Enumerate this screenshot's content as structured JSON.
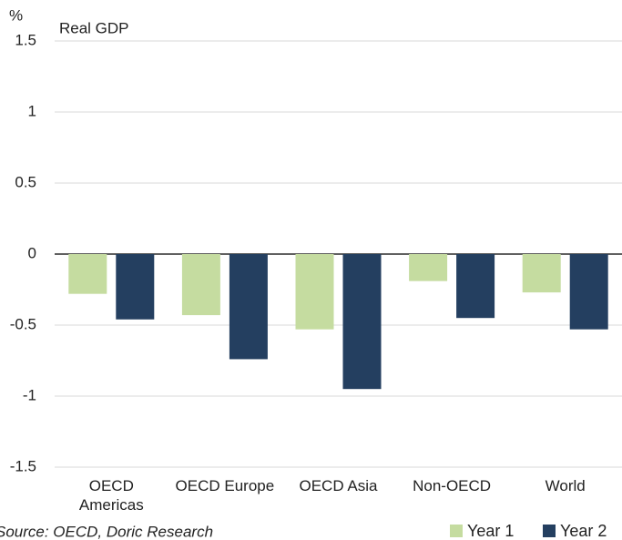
{
  "chart_data": {
    "type": "bar",
    "title": "Real GDP",
    "y_label": "%",
    "categories": [
      "OECD Americas",
      "OECD Europe",
      "OECD Asia",
      "Non-OECD",
      "World"
    ],
    "series": [
      {
        "name": "Year 1",
        "color": "#c5dca0",
        "values": [
          -0.28,
          -0.43,
          -0.53,
          -0.19,
          -0.27
        ]
      },
      {
        "name": "Year 2",
        "color": "#243f60",
        "values": [
          -0.46,
          -0.74,
          -0.95,
          -0.45,
          -0.53
        ]
      }
    ],
    "ylim": [
      -1.5,
      1.5
    ],
    "yticks": [
      -1.5,
      -1,
      -0.5,
      0,
      0.5,
      1,
      1.5
    ],
    "grid": true,
    "source": "Source: OECD, Doric Research",
    "legend": "bottom-right"
  }
}
